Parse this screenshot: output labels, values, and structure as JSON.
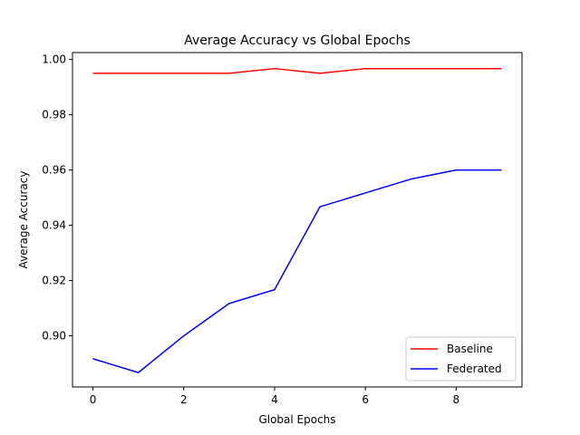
{
  "chart_data": {
    "type": "line",
    "title": "Average Accuracy vs Global Epochs",
    "xlabel": "Global Epochs",
    "ylabel": "Average Accuracy",
    "xlim": [
      -0.45,
      9.45
    ],
    "ylim": [
      0.8815,
      1.0025
    ],
    "x": [
      0,
      1,
      2,
      3,
      4,
      5,
      6,
      7,
      8,
      9
    ],
    "xticks": [
      "0",
      "2",
      "4",
      "6",
      "8"
    ],
    "xtick_values": [
      0,
      2,
      4,
      6,
      8
    ],
    "yticks": [
      "0.90",
      "0.92",
      "0.94",
      "0.96",
      "0.98",
      "1.00"
    ],
    "ytick_values": [
      0.9,
      0.92,
      0.94,
      0.96,
      0.98,
      1.0
    ],
    "grid": false,
    "legend_position": "bottom-right",
    "series": [
      {
        "name": "Baseline",
        "color": "#ff0000",
        "values": [
          0.995,
          0.995,
          0.995,
          0.995,
          0.9967,
          0.995,
          0.9967,
          0.9967,
          0.9967,
          0.9967
        ]
      },
      {
        "name": "Federated",
        "color": "#0000ff",
        "values": [
          0.8917,
          0.8867,
          0.9,
          0.9117,
          0.9167,
          0.9467,
          0.9517,
          0.9567,
          0.96,
          0.96
        ]
      }
    ]
  }
}
